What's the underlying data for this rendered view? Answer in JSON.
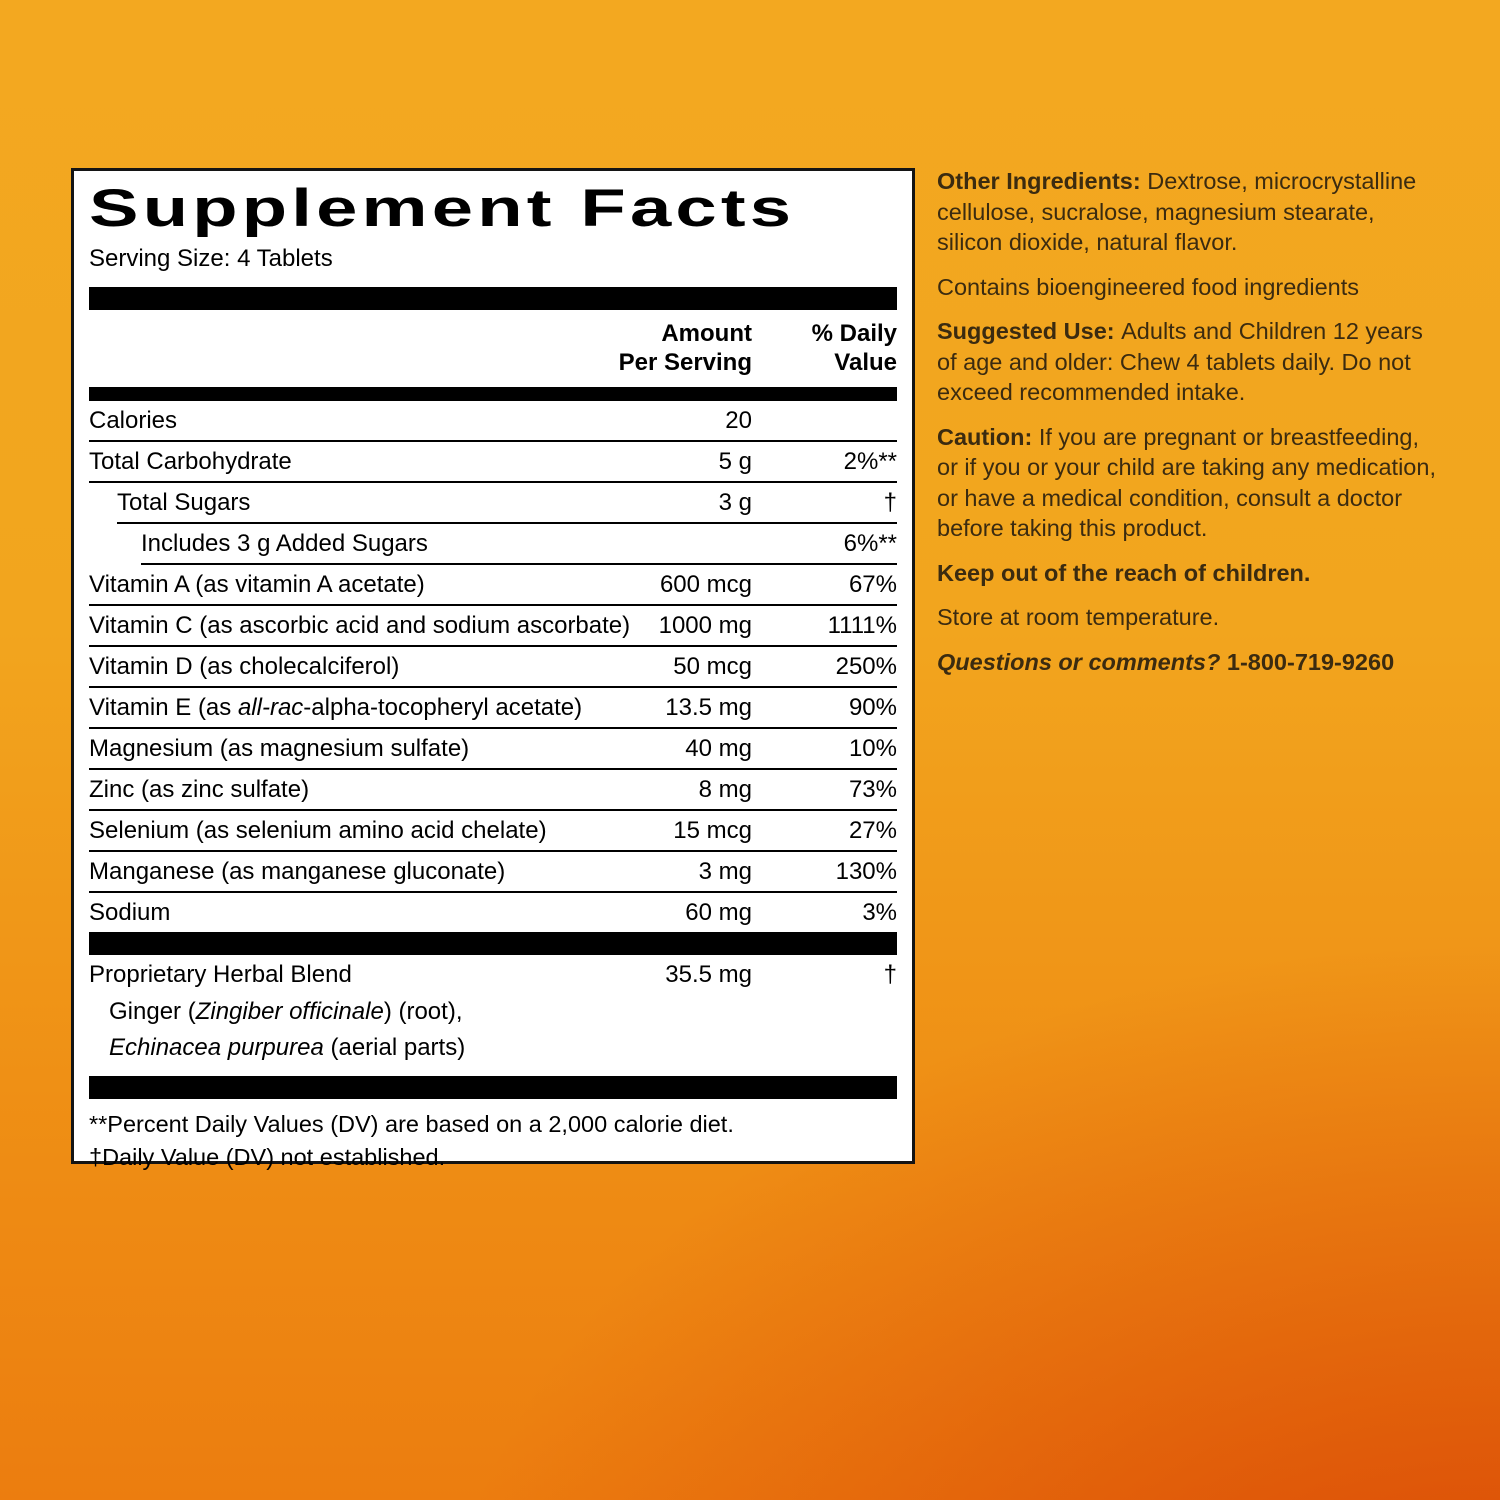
{
  "colors": {
    "background_top": "#F3A820",
    "background_bottom_left": "#EE8310",
    "background_bottom_right": "#DB4A06",
    "panel_background": "#FFFFFF",
    "panel_text": "#000000",
    "info_text": "#3B2B10"
  },
  "panel": {
    "title": "Supplement Facts",
    "serving_size": "Serving Size: 4 Tablets",
    "col_headers": {
      "amount_line1": "Amount",
      "amount_line2": "Per Serving",
      "dv_line1": "% Daily",
      "dv_line2": "Value"
    },
    "rows": [
      {
        "name": [
          {
            "t": "Calories"
          }
        ],
        "amount": "20",
        "dv": "",
        "indent": 0
      },
      {
        "name": [
          {
            "t": "Total Carbohydrate"
          }
        ],
        "amount": "5 g",
        "dv": "2%**",
        "indent": 0
      },
      {
        "name": [
          {
            "t": "Total Sugars"
          }
        ],
        "amount": "3 g",
        "dv": "†",
        "indent": 1
      },
      {
        "name": [
          {
            "t": "Includes 3 g Added Sugars"
          }
        ],
        "amount": "",
        "dv": "6%**",
        "indent": 2
      },
      {
        "name": [
          {
            "t": "Vitamin A (as vitamin A acetate)"
          }
        ],
        "amount": "600 mcg",
        "dv": "67%",
        "indent": 0
      },
      {
        "name": [
          {
            "t": "Vitamin C (as ascorbic acid and sodium ascorbate)"
          }
        ],
        "amount": "1000 mg",
        "dv": "1111%",
        "indent": 0
      },
      {
        "name": [
          {
            "t": "Vitamin D (as cholecalciferol)"
          }
        ],
        "amount": "50 mcg",
        "dv": "250%",
        "indent": 0
      },
      {
        "name": [
          {
            "t": "Vitamin E (as "
          },
          {
            "t": "all-rac",
            "i": 1
          },
          {
            "t": "-alpha-tocopheryl acetate)"
          }
        ],
        "amount": "13.5 mg",
        "dv": "90%",
        "indent": 0
      },
      {
        "name": [
          {
            "t": "Magnesium (as magnesium sulfate)"
          }
        ],
        "amount": "40 mg",
        "dv": "10%",
        "indent": 0
      },
      {
        "name": [
          {
            "t": "Zinc (as zinc sulfate)"
          }
        ],
        "amount": "8 mg",
        "dv": "73%",
        "indent": 0
      },
      {
        "name": [
          {
            "t": "Selenium (as selenium amino acid chelate)"
          }
        ],
        "amount": "15 mcg",
        "dv": "27%",
        "indent": 0
      },
      {
        "name": [
          {
            "t": "Manganese (as manganese gluconate)"
          }
        ],
        "amount": "3 mg",
        "dv": "130%",
        "indent": 0
      },
      {
        "name": [
          {
            "t": "Sodium"
          }
        ],
        "amount": "60 mg",
        "dv": "3%",
        "indent": 0
      }
    ],
    "herbal": {
      "name": "Proprietary Herbal Blend",
      "amount": "35.5 mg",
      "dv": "†",
      "sub_lines": [
        [
          {
            "t": "Ginger ("
          },
          {
            "t": "Zingiber officinale",
            "i": 1
          },
          {
            "t": ") (root),"
          }
        ],
        [
          {
            "t": "Echinacea purpurea",
            "i": 1
          },
          {
            "t": " (aerial parts)"
          }
        ]
      ]
    },
    "footnotes": [
      "**Percent Daily Values (DV) are based on a 2,000 calorie diet.",
      "†Daily Value (DV) not established."
    ]
  },
  "info": {
    "paragraphs": [
      [
        {
          "t": "Other Ingredients: ",
          "b": 1
        },
        {
          "t": "Dextrose, microcrystalline cellulose, sucralose, magnesium stearate, silicon dioxide, natural flavor."
        }
      ],
      [
        {
          "t": "Contains bioengineered food ingredients"
        }
      ],
      [
        {
          "t": "Suggested Use: ",
          "b": 1
        },
        {
          "t": "Adults and Children 12 years of age and older: Chew 4 tablets daily. Do not exceed recommended intake."
        }
      ],
      [
        {
          "t": "Caution: ",
          "b": 1
        },
        {
          "t": "If you are pregnant or breastfeeding, or if you or your child are taking any medication, or have a medical condition, consult a doctor before taking this product."
        }
      ],
      [
        {
          "t": "Keep out of the reach of children.",
          "b": 1
        }
      ],
      [
        {
          "t": "Store at room temperature."
        }
      ],
      [
        {
          "t": "Questions or comments? ",
          "b": 1,
          "i": 1
        },
        {
          "t": "1-800-719-9260",
          "b": 1
        }
      ]
    ]
  }
}
